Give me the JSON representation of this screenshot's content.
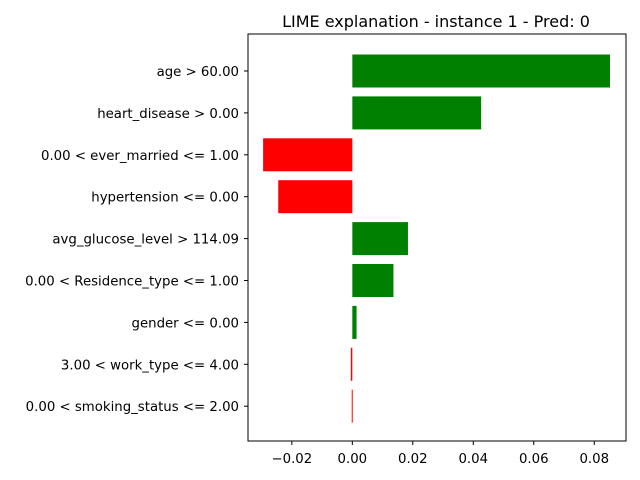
{
  "chart_data": {
    "type": "bar",
    "orientation": "horizontal",
    "title": "LIME explanation - instance 1 - Pred: 0",
    "xlabel": "",
    "ylabel": "",
    "categories": [
      "age > 60.00",
      "heart_disease > 0.00",
      "0.00 < ever_married <= 1.00",
      "hypertension <= 0.00",
      "avg_glucose_level > 114.09",
      "0.00 < Residence_type <= 1.00",
      "gender <= 0.00",
      "3.00 < work_type <= 4.00",
      "0.00 < smoking_status <= 2.00"
    ],
    "values": [
      0.0852,
      0.0426,
      -0.0295,
      -0.0245,
      0.0184,
      0.0136,
      0.0014,
      -0.0005,
      -0.0002
    ],
    "xlim": [
      -0.0345,
      0.0905
    ],
    "xticks": [
      -0.02,
      0.0,
      0.02,
      0.04,
      0.06,
      0.08
    ],
    "xtick_labels": [
      "−0.02",
      "0.00",
      "0.02",
      "0.04",
      "0.06",
      "0.08"
    ],
    "grid": false,
    "legend": "none",
    "colors": {
      "positive": "#008000",
      "negative": "#ff0000",
      "axis": "#000000"
    }
  }
}
